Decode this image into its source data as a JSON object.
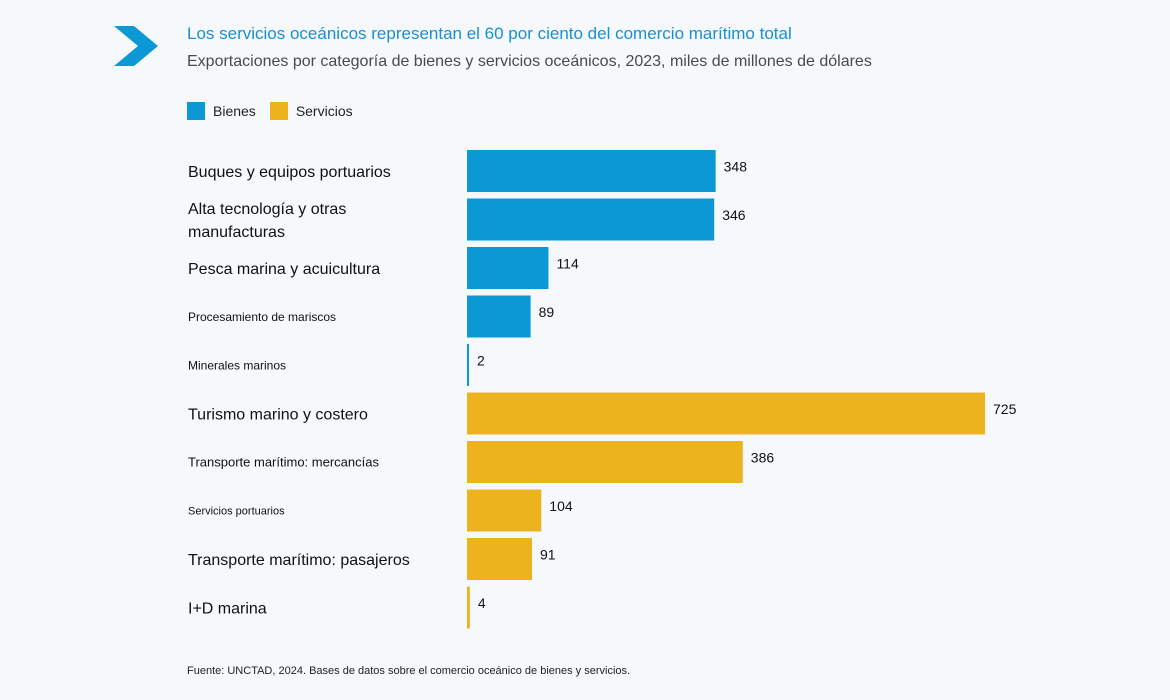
{
  "header": {
    "title": "Los servicios oceánicos representan el 60 por ciento del comercio marítimo total",
    "subtitle": "Exportaciones por categoría de bienes y servicios oceánicos, 2023, miles de millones de dólares",
    "logo_icon": "chevron-right-icon"
  },
  "legend": [
    {
      "label": "Bienes",
      "color": "#0b98d4"
    },
    {
      "label": "Servicios",
      "color": "#ecb31f"
    }
  ],
  "chart_data": {
    "type": "bar",
    "orientation": "horizontal",
    "title": "Los servicios oceánicos representan el 60 por ciento del comercio marítimo total",
    "subtitle": "Exportaciones por categoría de bienes y servicios oceánicos, 2023, miles de millones de dólares",
    "xlim": [
      0,
      725
    ],
    "grid": false,
    "legend_position": "top-left",
    "series": [
      {
        "name": "Bienes",
        "color": "#0b98d4"
      },
      {
        "name": "Servicios",
        "color": "#ecb31f"
      }
    ],
    "bars": [
      {
        "label": [
          "Buques y equipos portuarios"
        ],
        "value": 348,
        "series": "Bienes",
        "fontSize": 16
      },
      {
        "label": [
          "Alta tecnología y otras",
          "manufacturas"
        ],
        "value": 346,
        "series": "Bienes",
        "fontSize": 16
      },
      {
        "label": [
          "Pesca marina y acuicultura"
        ],
        "value": 114,
        "series": "Bienes",
        "fontSize": 16
      },
      {
        "label": [
          "Procesamiento de mariscos"
        ],
        "value": 89,
        "series": "Bienes",
        "fontSize": 12
      },
      {
        "label": [
          "Minerales marinos"
        ],
        "value": 2,
        "series": "Bienes",
        "fontSize": 12
      },
      {
        "label": [
          "Turismo marino y costero"
        ],
        "value": 725,
        "series": "Servicios",
        "fontSize": 16
      },
      {
        "label": [
          "Transporte marítimo: mercancías"
        ],
        "value": 386,
        "series": "Servicios",
        "fontSize": 13
      },
      {
        "label": [
          "Servicios portuarios"
        ],
        "value": 104,
        "series": "Servicios",
        "fontSize": 11
      },
      {
        "label": [
          "Transporte marítimo: pasajeros"
        ],
        "value": 91,
        "series": "Servicios",
        "fontSize": 16
      },
      {
        "label": [
          "I+D marina"
        ],
        "value": 4,
        "series": "Servicios",
        "fontSize": 16
      }
    ]
  },
  "footer": {
    "source": "Fuente: UNCTAD, 2024. Bases de datos sobre el comercio oceánico de bienes y servicios."
  }
}
